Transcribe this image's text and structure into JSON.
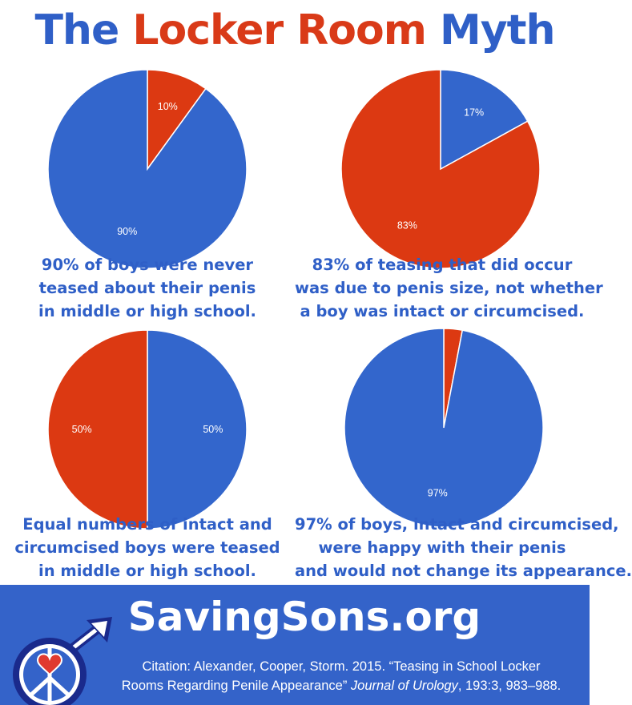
{
  "header": {
    "title_part1": "The",
    "title_part2": "Locker Room",
    "title_part3": "Myth"
  },
  "colors": {
    "blue": "#3366cc",
    "red": "#dc3912"
  },
  "chart_data": [
    {
      "type": "pie",
      "slices": [
        {
          "label": "10%",
          "value": 10,
          "color": "#dc3912"
        },
        {
          "label": "90%",
          "value": 90,
          "color": "#3366cc"
        }
      ],
      "caption": [
        "90% of boys were never",
        "teased about their penis",
        "in middle or high school."
      ]
    },
    {
      "type": "pie",
      "slices": [
        {
          "label": "17%",
          "value": 17,
          "color": "#3366cc"
        },
        {
          "label": "83%",
          "value": 83,
          "color": "#dc3912"
        }
      ],
      "caption": [
        "83% of teasing that did occur",
        "was due to penis size, not whether",
        "a boy was intact or circumcised."
      ]
    },
    {
      "type": "pie",
      "slices": [
        {
          "label": "50%",
          "value": 50,
          "color": "#3366cc"
        },
        {
          "label": "50%",
          "value": 50,
          "color": "#dc3912"
        }
      ],
      "caption": [
        "Equal numbers of intact and",
        "circumcised boys were teased",
        "in middle or high school."
      ]
    },
    {
      "type": "pie",
      "slices": [
        {
          "label": "",
          "value": 3,
          "color": "#dc3912"
        },
        {
          "label": "97%",
          "value": 97,
          "color": "#3366cc"
        }
      ],
      "caption": [
        "97% of boys, intact and circumcised,",
        "were happy with their penis",
        "and would not change its appearance."
      ]
    }
  ],
  "footer": {
    "site": "SavingSons.org",
    "citation_line1": "Citation: Alexander, Cooper, Storm. 2015. “Teasing in School Locker",
    "citation_line2a": "Rooms Regarding Penile Appearance” ",
    "citation_journal": "Journal of Urology",
    "citation_line2b": ", 193:3, 983–988.",
    "logo_icon": "male-symbol-peace-heart-icon"
  }
}
